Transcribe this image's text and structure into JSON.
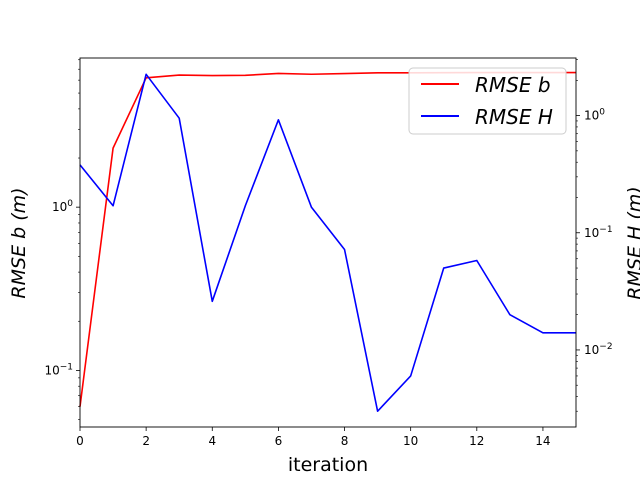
{
  "chart_data": {
    "type": "line",
    "xlabel": "iteration",
    "ylabel_left": "RMSE b (m)",
    "ylabel_right": "RMSE H (m)",
    "xlim": [
      0,
      15
    ],
    "ylim_left": [
      0.045,
      8.2
    ],
    "ylim_right": [
      0.0022,
      3.1
    ],
    "yscale_left": "log",
    "yscale_right": "log",
    "x_ticks": [
      "0",
      "2",
      "4",
      "6",
      "8",
      "10",
      "12",
      "14"
    ],
    "y_left_ticks": [
      {
        "value": 0.1,
        "base": "10",
        "exp": "−1"
      },
      {
        "value": 1,
        "base": "10",
        "exp": "0"
      }
    ],
    "y_right_ticks": [
      {
        "value": 0.01,
        "base": "10",
        "exp": "−2"
      },
      {
        "value": 0.1,
        "base": "10",
        "exp": "−1"
      },
      {
        "value": 1,
        "base": "10",
        "exp": "0"
      }
    ],
    "legend_location": "upper right",
    "series": [
      {
        "name": "RMSE b",
        "axis": "left",
        "color": "#ff0000",
        "x": [
          0,
          1,
          2,
          3,
          4,
          5,
          6,
          7,
          8,
          9,
          10,
          11,
          12,
          13,
          14,
          15
        ],
        "values": [
          0.06,
          2.3,
          6.2,
          6.45,
          6.4,
          6.42,
          6.6,
          6.52,
          6.58,
          6.65,
          6.65,
          6.67,
          6.68,
          6.68,
          6.68,
          6.68
        ]
      },
      {
        "name": "RMSE H",
        "axis": "right",
        "color": "#0000ff",
        "x": [
          0,
          1,
          2,
          3,
          4,
          5,
          6,
          7,
          8,
          9,
          10,
          11,
          12,
          13,
          14,
          15
        ],
        "values": [
          0.38,
          0.17,
          2.25,
          0.95,
          0.026,
          0.17,
          0.92,
          0.165,
          0.072,
          0.003,
          0.006,
          0.05,
          0.058,
          0.02,
          0.014,
          0.014
        ]
      }
    ]
  }
}
